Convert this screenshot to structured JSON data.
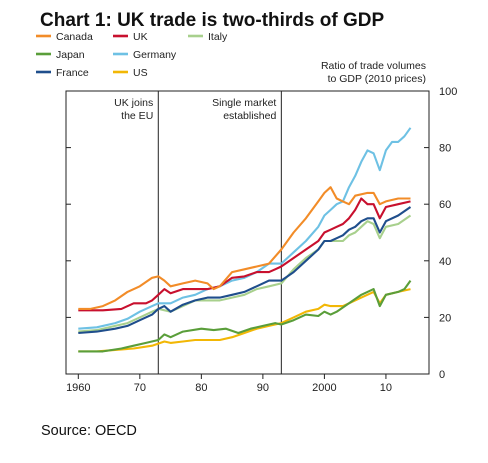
{
  "chart_data": {
    "type": "line",
    "title": "Chart 1: UK trade is two-thirds of GDP",
    "ylabel_line1": "Ratio of trade volumes",
    "ylabel_line2": "to GDP (2010 prices)",
    "source": "Source: OECD",
    "xlim": [
      1958,
      2017
    ],
    "ylim": [
      0,
      100
    ],
    "x_ticks": [
      1960,
      1970,
      1980,
      1990,
      2000,
      2010
    ],
    "x_tick_labels": [
      "1960",
      "70",
      "80",
      "90",
      "2000",
      "10"
    ],
    "y_ticks": [
      0,
      20,
      40,
      60,
      80,
      100
    ],
    "y_tick_labels": [
      "0",
      "20",
      "40",
      "60",
      "80",
      "100"
    ],
    "legend_placement": "top-left",
    "events": [
      {
        "x": 1973,
        "label_line1": "UK joins",
        "label_line2": "the EU"
      },
      {
        "x": 1993,
        "label_line1": "Single market",
        "label_line2": "established"
      }
    ],
    "series": [
      {
        "name": "Canada",
        "color": "#F28C28",
        "points": [
          [
            1960,
            23
          ],
          [
            1962,
            23
          ],
          [
            1964,
            24
          ],
          [
            1966,
            26
          ],
          [
            1968,
            29
          ],
          [
            1970,
            31
          ],
          [
            1972,
            34
          ],
          [
            1973,
            34.5
          ],
          [
            1974,
            33
          ],
          [
            1975,
            31
          ],
          [
            1977,
            32
          ],
          [
            1979,
            33
          ],
          [
            1981,
            32
          ],
          [
            1982,
            30
          ],
          [
            1983,
            31
          ],
          [
            1985,
            36
          ],
          [
            1987,
            37
          ],
          [
            1989,
            38
          ],
          [
            1991,
            39
          ],
          [
            1993,
            44
          ],
          [
            1995,
            50
          ],
          [
            1997,
            55
          ],
          [
            1999,
            61
          ],
          [
            2000,
            64
          ],
          [
            2001,
            66
          ],
          [
            2002,
            62
          ],
          [
            2003,
            61
          ],
          [
            2004,
            60
          ],
          [
            2005,
            63
          ],
          [
            2007,
            64
          ],
          [
            2008,
            64
          ],
          [
            2009,
            60
          ],
          [
            2010,
            61
          ],
          [
            2012,
            62
          ],
          [
            2014,
            62
          ]
        ]
      },
      {
        "name": "UK",
        "color": "#C8102E",
        "points": [
          [
            1960,
            22.5
          ],
          [
            1964,
            22.5
          ],
          [
            1967,
            23
          ],
          [
            1969,
            25
          ],
          [
            1971,
            25
          ],
          [
            1972,
            26
          ],
          [
            1973,
            28
          ],
          [
            1974,
            30
          ],
          [
            1975,
            28.5
          ],
          [
            1977,
            30
          ],
          [
            1979,
            30
          ],
          [
            1981,
            30
          ],
          [
            1983,
            31
          ],
          [
            1985,
            34
          ],
          [
            1987,
            34.5
          ],
          [
            1989,
            36
          ],
          [
            1990,
            36
          ],
          [
            1991,
            36
          ],
          [
            1992,
            37
          ],
          [
            1993,
            38
          ],
          [
            1995,
            41
          ],
          [
            1997,
            44
          ],
          [
            1999,
            47
          ],
          [
            2000,
            50
          ],
          [
            2001,
            51
          ],
          [
            2002,
            52
          ],
          [
            2003,
            53
          ],
          [
            2004,
            55
          ],
          [
            2005,
            58
          ],
          [
            2006,
            62
          ],
          [
            2007,
            60
          ],
          [
            2008,
            60
          ],
          [
            2009,
            55
          ],
          [
            2010,
            59
          ],
          [
            2012,
            60
          ],
          [
            2014,
            61
          ]
        ]
      },
      {
        "name": "Japan",
        "color": "#5A9E3A",
        "points": [
          [
            1960,
            8
          ],
          [
            1964,
            8
          ],
          [
            1967,
            9
          ],
          [
            1969,
            10
          ],
          [
            1971,
            11
          ],
          [
            1973,
            12
          ],
          [
            1974,
            14
          ],
          [
            1975,
            13
          ],
          [
            1977,
            15
          ],
          [
            1980,
            16
          ],
          [
            1982,
            15.5
          ],
          [
            1984,
            16
          ],
          [
            1986,
            14.5
          ],
          [
            1988,
            16
          ],
          [
            1990,
            17
          ],
          [
            1992,
            18
          ],
          [
            1993,
            17.5
          ],
          [
            1995,
            19
          ],
          [
            1997,
            21
          ],
          [
            1999,
            20.5
          ],
          [
            2000,
            22
          ],
          [
            2001,
            21
          ],
          [
            2002,
            22
          ],
          [
            2004,
            25
          ],
          [
            2006,
            28
          ],
          [
            2007,
            29
          ],
          [
            2008,
            30
          ],
          [
            2009,
            24
          ],
          [
            2010,
            28
          ],
          [
            2012,
            29
          ],
          [
            2013,
            30
          ],
          [
            2014,
            33
          ]
        ]
      },
      {
        "name": "Germany",
        "color": "#6EC1E4",
        "points": [
          [
            1960,
            16
          ],
          [
            1963,
            16.5
          ],
          [
            1966,
            18
          ],
          [
            1968,
            19.5
          ],
          [
            1970,
            22
          ],
          [
            1972,
            24
          ],
          [
            1973,
            25
          ],
          [
            1975,
            25
          ],
          [
            1977,
            27
          ],
          [
            1979,
            28
          ],
          [
            1981,
            30
          ],
          [
            1983,
            31
          ],
          [
            1985,
            33
          ],
          [
            1987,
            34
          ],
          [
            1989,
            36
          ],
          [
            1991,
            39
          ],
          [
            1993,
            39
          ],
          [
            1995,
            43
          ],
          [
            1997,
            47
          ],
          [
            1999,
            52
          ],
          [
            2000,
            56
          ],
          [
            2001,
            58
          ],
          [
            2002,
            60
          ],
          [
            2003,
            61
          ],
          [
            2004,
            66
          ],
          [
            2005,
            70
          ],
          [
            2006,
            75
          ],
          [
            2007,
            79
          ],
          [
            2008,
            78
          ],
          [
            2009,
            72
          ],
          [
            2010,
            79
          ],
          [
            2011,
            82
          ],
          [
            2012,
            82
          ],
          [
            2013,
            84
          ],
          [
            2014,
            87
          ]
        ]
      },
      {
        "name": "France",
        "color": "#1F4E8C",
        "points": [
          [
            1960,
            14.5
          ],
          [
            1963,
            15
          ],
          [
            1966,
            16
          ],
          [
            1968,
            17
          ],
          [
            1970,
            19
          ],
          [
            1972,
            21
          ],
          [
            1973,
            23
          ],
          [
            1974,
            24
          ],
          [
            1975,
            22
          ],
          [
            1977,
            24.5
          ],
          [
            1979,
            26
          ],
          [
            1981,
            27
          ],
          [
            1983,
            27
          ],
          [
            1985,
            28
          ],
          [
            1987,
            29
          ],
          [
            1989,
            31
          ],
          [
            1991,
            33
          ],
          [
            1993,
            33
          ],
          [
            1995,
            36
          ],
          [
            1997,
            40
          ],
          [
            1999,
            44
          ],
          [
            2000,
            47
          ],
          [
            2001,
            47
          ],
          [
            2002,
            48
          ],
          [
            2003,
            49
          ],
          [
            2004,
            51
          ],
          [
            2005,
            52
          ],
          [
            2006,
            54
          ],
          [
            2007,
            55
          ],
          [
            2008,
            55
          ],
          [
            2009,
            50
          ],
          [
            2010,
            54
          ],
          [
            2012,
            56
          ],
          [
            2014,
            59
          ]
        ]
      },
      {
        "name": "Italy",
        "color": "#A8D08D",
        "points": [
          [
            1960,
            15
          ],
          [
            1963,
            15.5
          ],
          [
            1966,
            17
          ],
          [
            1968,
            18
          ],
          [
            1970,
            20
          ],
          [
            1972,
            22
          ],
          [
            1973,
            23
          ],
          [
            1975,
            22
          ],
          [
            1977,
            24
          ],
          [
            1979,
            26
          ],
          [
            1981,
            26
          ],
          [
            1983,
            26
          ],
          [
            1985,
            27
          ],
          [
            1987,
            28
          ],
          [
            1989,
            30
          ],
          [
            1991,
            31
          ],
          [
            1993,
            32
          ],
          [
            1995,
            37
          ],
          [
            1997,
            41
          ],
          [
            1999,
            44
          ],
          [
            2000,
            47
          ],
          [
            2001,
            47
          ],
          [
            2002,
            47
          ],
          [
            2003,
            47
          ],
          [
            2004,
            49
          ],
          [
            2005,
            50
          ],
          [
            2006,
            52
          ],
          [
            2007,
            54
          ],
          [
            2008,
            53
          ],
          [
            2009,
            48
          ],
          [
            2010,
            52
          ],
          [
            2012,
            53
          ],
          [
            2014,
            56
          ]
        ]
      },
      {
        "name": "US",
        "color": "#F2B705",
        "points": [
          [
            1960,
            8
          ],
          [
            1963,
            8
          ],
          [
            1966,
            8.5
          ],
          [
            1969,
            9
          ],
          [
            1972,
            10
          ],
          [
            1974,
            11.5
          ],
          [
            1975,
            11
          ],
          [
            1977,
            11.5
          ],
          [
            1979,
            12
          ],
          [
            1981,
            12
          ],
          [
            1983,
            12
          ],
          [
            1985,
            13
          ],
          [
            1987,
            14.5
          ],
          [
            1989,
            16
          ],
          [
            1991,
            17
          ],
          [
            1993,
            18
          ],
          [
            1995,
            20
          ],
          [
            1997,
            22
          ],
          [
            1999,
            23
          ],
          [
            2000,
            24.5
          ],
          [
            2001,
            24
          ],
          [
            2002,
            24
          ],
          [
            2003,
            24
          ],
          [
            2004,
            25
          ],
          [
            2006,
            27
          ],
          [
            2008,
            29
          ],
          [
            2009,
            25
          ],
          [
            2010,
            28
          ],
          [
            2012,
            29
          ],
          [
            2014,
            30
          ]
        ]
      }
    ]
  }
}
